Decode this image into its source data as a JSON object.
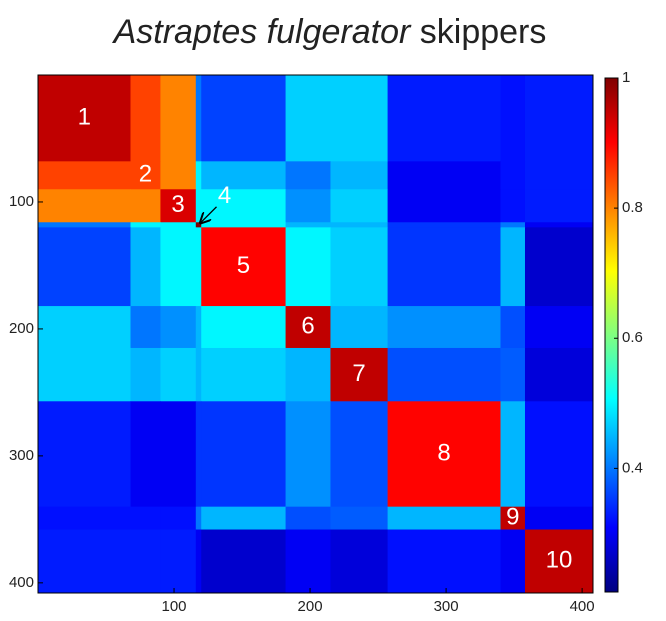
{
  "chart_data": {
    "type": "heatmap",
    "title": {
      "species": "Astraptes fulgerator",
      "rest": "skippers"
    },
    "bounds": [
      0,
      68,
      90,
      116,
      120,
      182,
      215,
      257,
      340,
      358,
      408
    ],
    "cluster_labels": [
      "1",
      "2",
      "3",
      "4",
      "5",
      "6",
      "7",
      "8",
      "9",
      "10"
    ],
    "values": [
      [
        0.95,
        0.85,
        0.8,
        0.4,
        0.36,
        0.47,
        0.47,
        0.33,
        0.32,
        0.33
      ],
      [
        0.85,
        0.85,
        0.8,
        0.5,
        0.45,
        0.4,
        0.45,
        0.3,
        0.32,
        0.33
      ],
      [
        0.8,
        0.8,
        0.93,
        0.5,
        0.5,
        0.42,
        0.47,
        0.3,
        0.32,
        0.33
      ],
      [
        0.4,
        0.5,
        0.5,
        1,
        0.5,
        0.45,
        0.45,
        0.35,
        0.4,
        0.3
      ],
      [
        0.36,
        0.45,
        0.5,
        0.5,
        0.9,
        0.5,
        0.47,
        0.35,
        0.45,
        0.27
      ],
      [
        0.47,
        0.4,
        0.42,
        0.45,
        0.5,
        0.95,
        0.45,
        0.42,
        0.37,
        0.3
      ],
      [
        0.47,
        0.45,
        0.47,
        0.45,
        0.47,
        0.45,
        0.95,
        0.37,
        0.38,
        0.28
      ],
      [
        0.33,
        0.3,
        0.3,
        0.35,
        0.35,
        0.42,
        0.37,
        0.9,
        0.45,
        0.32
      ],
      [
        0.32,
        0.32,
        0.32,
        0.4,
        0.45,
        0.37,
        0.38,
        0.45,
        0.95,
        0.3
      ],
      [
        0.33,
        0.33,
        0.33,
        0.3,
        0.27,
        0.3,
        0.28,
        0.32,
        0.3,
        0.95
      ]
    ],
    "xlim": [
      0,
      408
    ],
    "ylim": [
      0,
      408
    ],
    "xticks": [
      100,
      200,
      300,
      400
    ],
    "yticks": [
      100,
      200,
      300,
      400
    ],
    "colormap": "jet",
    "clim": [
      0.21,
      1
    ],
    "cticks": [
      0.4,
      0.6,
      0.8,
      1
    ]
  }
}
